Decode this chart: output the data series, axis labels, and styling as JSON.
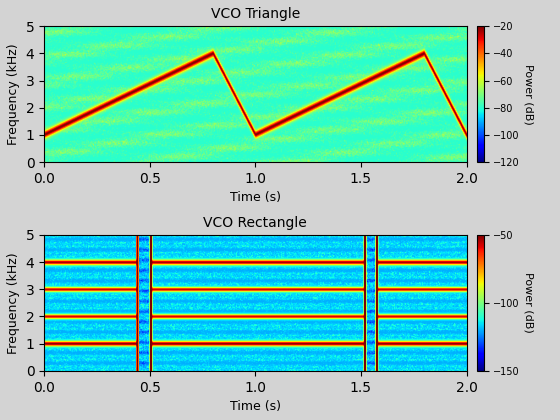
{
  "title1": "VCO Triangle",
  "title2": "VCO Rectangle",
  "xlabel": "Time (s)",
  "ylabel": "Frequency (kHz)",
  "colorbar_label": "Power (dB)",
  "xlim": [
    0,
    2
  ],
  "ylim_khz": [
    0,
    5
  ],
  "clim1": [
    -120,
    -20
  ],
  "clim2": [
    -150,
    -50
  ],
  "colorbar_ticks1": [
    -20,
    -40,
    -60,
    -80,
    -100,
    -120
  ],
  "colorbar_ticks2": [
    -50,
    -100,
    -150
  ],
  "cmap": "jet",
  "fig_facecolor": "#d3d3d3"
}
